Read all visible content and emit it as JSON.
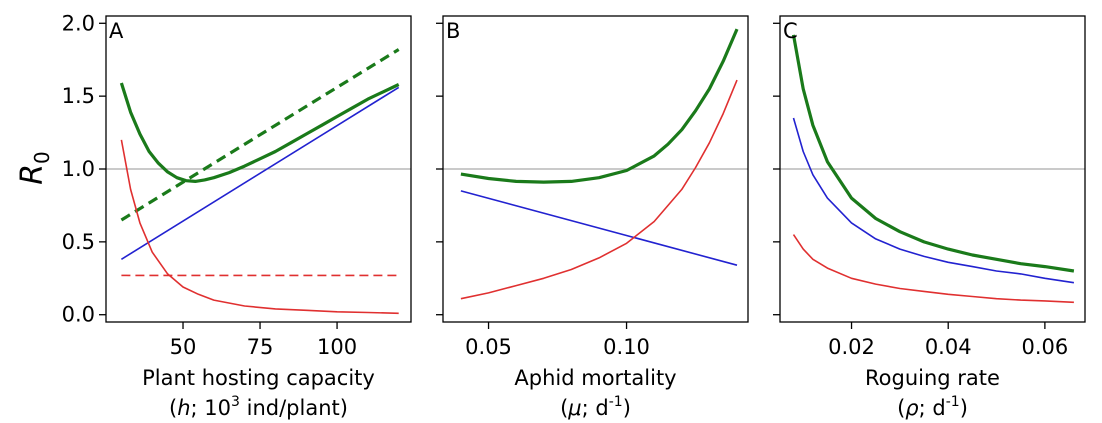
{
  "ylabel": {
    "symbol": "R",
    "subscript": "0"
  },
  "yticks": [
    "0.0",
    "0.5",
    "1.0",
    "1.5",
    "2.0"
  ],
  "colors": {
    "total": "#1a7a1a",
    "red": "#e03030",
    "blue": "#2222d0",
    "ref": "#aaaaaa"
  },
  "chart_data": [
    {
      "type": "line",
      "panel": "A",
      "xlabel": {
        "line1": "Plant hosting capacity",
        "line2_parts": [
          "(",
          "h",
          "; 10",
          "3",
          " ind/plant)"
        ]
      },
      "xticks": [
        50,
        75,
        100
      ],
      "xlim": [
        25,
        124
      ],
      "ylim": [
        -0.05,
        2.05
      ],
      "reference_y": 1.0,
      "series": [
        {
          "color": "total",
          "width": 3.2,
          "dash": false,
          "x": [
            30,
            33,
            36,
            39,
            42,
            45,
            48,
            51,
            54,
            57,
            60,
            65,
            70,
            75,
            80,
            85,
            90,
            95,
            100,
            105,
            110,
            115,
            120
          ],
          "y": [
            1.59,
            1.39,
            1.24,
            1.12,
            1.04,
            0.98,
            0.94,
            0.92,
            0.915,
            0.925,
            0.94,
            0.975,
            1.02,
            1.07,
            1.12,
            1.18,
            1.24,
            1.3,
            1.36,
            1.42,
            1.48,
            1.53,
            1.58
          ]
        },
        {
          "color": "total",
          "width": 3.2,
          "dash": true,
          "x": [
            30,
            120
          ],
          "y": [
            0.65,
            1.82
          ]
        },
        {
          "color": "blue",
          "width": 1.6,
          "dash": false,
          "x": [
            30,
            120
          ],
          "y": [
            0.38,
            1.56
          ]
        },
        {
          "color": "red",
          "width": 1.6,
          "dash": false,
          "x": [
            30,
            33,
            36,
            40,
            45,
            50,
            55,
            60,
            70,
            80,
            90,
            100,
            110,
            120
          ],
          "y": [
            1.2,
            0.86,
            0.63,
            0.43,
            0.28,
            0.19,
            0.14,
            0.1,
            0.06,
            0.04,
            0.03,
            0.02,
            0.015,
            0.01
          ]
        },
        {
          "color": "red",
          "width": 1.6,
          "dash": true,
          "x": [
            30,
            120
          ],
          "y": [
            0.27,
            0.27
          ]
        }
      ]
    },
    {
      "type": "line",
      "panel": "B",
      "xlabel": {
        "line1": "Aphid mortality",
        "line2_parts": [
          "(",
          "μ",
          "; d",
          "-1",
          ")"
        ]
      },
      "xticks": [
        "0.05",
        "0.10"
      ],
      "xlim": [
        0.0335,
        0.144
      ],
      "ylim": [
        -0.05,
        2.05
      ],
      "reference_y": 1.0,
      "series": [
        {
          "color": "total",
          "width": 3.2,
          "dash": false,
          "x": [
            0.04,
            0.05,
            0.06,
            0.07,
            0.08,
            0.09,
            0.1,
            0.11,
            0.115,
            0.12,
            0.125,
            0.13,
            0.135,
            0.14
          ],
          "y": [
            0.965,
            0.935,
            0.915,
            0.91,
            0.915,
            0.94,
            0.99,
            1.09,
            1.17,
            1.27,
            1.4,
            1.55,
            1.74,
            1.96
          ]
        },
        {
          "color": "blue",
          "width": 1.6,
          "dash": false,
          "x": [
            0.04,
            0.14
          ],
          "y": [
            0.85,
            0.34
          ]
        },
        {
          "color": "red",
          "width": 1.6,
          "dash": false,
          "x": [
            0.04,
            0.05,
            0.06,
            0.07,
            0.08,
            0.09,
            0.1,
            0.11,
            0.12,
            0.125,
            0.13,
            0.135,
            0.14
          ],
          "y": [
            0.11,
            0.15,
            0.2,
            0.25,
            0.31,
            0.39,
            0.49,
            0.64,
            0.86,
            1.01,
            1.18,
            1.38,
            1.61
          ]
        }
      ]
    },
    {
      "type": "line",
      "panel": "C",
      "xlabel": {
        "line1": "Roguing rate",
        "line2_parts": [
          "(",
          "ρ",
          "; d",
          "-1",
          ")"
        ]
      },
      "xticks": [
        "0.02",
        "0.04",
        "0.06"
      ],
      "xlim": [
        0.0052,
        0.0683
      ],
      "ylim": [
        -0.05,
        2.05
      ],
      "reference_y": 1.0,
      "series": [
        {
          "color": "total",
          "width": 3.2,
          "dash": false,
          "x": [
            0.008,
            0.01,
            0.012,
            0.015,
            0.02,
            0.025,
            0.03,
            0.035,
            0.04,
            0.045,
            0.05,
            0.055,
            0.06,
            0.066
          ],
          "y": [
            1.92,
            1.55,
            1.3,
            1.05,
            0.8,
            0.66,
            0.57,
            0.5,
            0.45,
            0.41,
            0.38,
            0.35,
            0.33,
            0.3
          ]
        },
        {
          "color": "blue",
          "width": 1.6,
          "dash": false,
          "x": [
            0.008,
            0.01,
            0.012,
            0.015,
            0.02,
            0.025,
            0.03,
            0.035,
            0.04,
            0.045,
            0.05,
            0.055,
            0.06,
            0.066
          ],
          "y": [
            1.35,
            1.12,
            0.96,
            0.8,
            0.63,
            0.52,
            0.45,
            0.4,
            0.36,
            0.33,
            0.3,
            0.28,
            0.25,
            0.22
          ]
        },
        {
          "color": "red",
          "width": 1.6,
          "dash": false,
          "x": [
            0.008,
            0.01,
            0.012,
            0.015,
            0.02,
            0.025,
            0.03,
            0.035,
            0.04,
            0.045,
            0.05,
            0.055,
            0.06,
            0.066
          ],
          "y": [
            0.55,
            0.45,
            0.38,
            0.32,
            0.25,
            0.21,
            0.18,
            0.16,
            0.14,
            0.125,
            0.11,
            0.1,
            0.095,
            0.085
          ]
        }
      ]
    }
  ]
}
